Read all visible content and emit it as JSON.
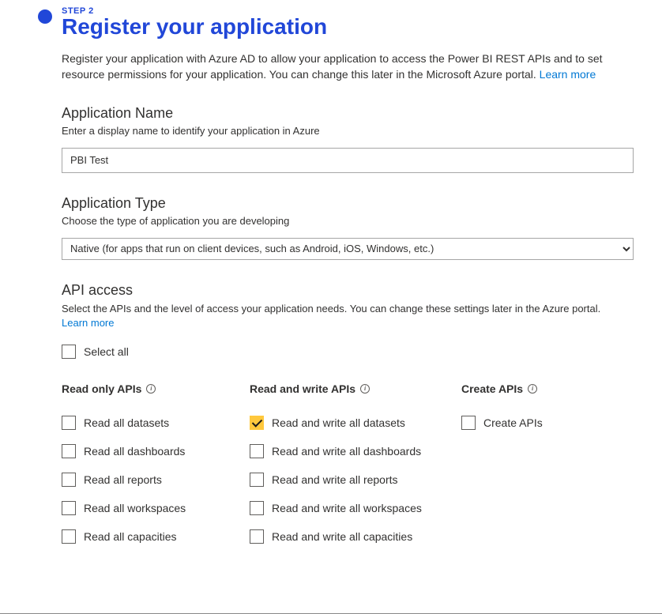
{
  "step_label": "STEP 2",
  "step_title": "Register your application",
  "description_prefix": "Register your application with Azure AD to allow your application to access the Power BI REST APIs and to set resource permissions for your application. You can change this later in the Microsoft Azure portal. ",
  "learn_more": "Learn more",
  "app_name": {
    "title": "Application Name",
    "subtitle": "Enter a display name to identify your application in Azure",
    "value": "PBI Test"
  },
  "app_type": {
    "title": "Application Type",
    "subtitle": "Choose the type of application you are developing",
    "selected": "Native (for apps that run on client devices, such as Android, iOS, Windows, etc.)"
  },
  "api_access": {
    "title": "API access",
    "desc": "Select the APIs and the level of access your application needs. You can change these settings later in the Azure portal.",
    "learn_more": "Learn more",
    "select_all": "Select all"
  },
  "groups": {
    "read": {
      "title": "Read only APIs",
      "items": [
        {
          "label": "Read all datasets",
          "checked": false
        },
        {
          "label": "Read all dashboards",
          "checked": false
        },
        {
          "label": "Read all reports",
          "checked": false
        },
        {
          "label": "Read all workspaces",
          "checked": false
        },
        {
          "label": "Read all capacities",
          "checked": false
        }
      ]
    },
    "readwrite": {
      "title": "Read and write APIs",
      "items": [
        {
          "label": "Read and write all datasets",
          "checked": true
        },
        {
          "label": "Read and write all dashboards",
          "checked": false
        },
        {
          "label": "Read and write all reports",
          "checked": false
        },
        {
          "label": "Read and write all workspaces",
          "checked": false
        },
        {
          "label": "Read and write all capacities",
          "checked": false
        }
      ]
    },
    "create": {
      "title": "Create APIs",
      "items": [
        {
          "label": "Create APIs",
          "checked": false
        }
      ]
    }
  },
  "colors": {
    "accent": "#2147d8",
    "link": "#0078d4",
    "text": "#323130",
    "border": "#a6a6a6",
    "check_bg": "#ffc83d",
    "check_mark": "#1b1a19"
  }
}
